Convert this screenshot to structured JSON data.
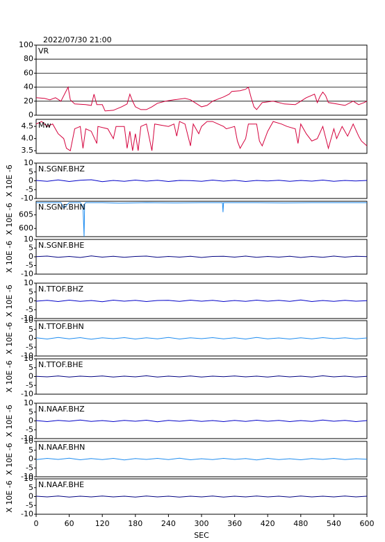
{
  "chart_data": [
    {
      "type": "line",
      "title": "2022/07/30 21:00",
      "xlim": [
        0,
        600
      ],
      "ylim": [
        0,
        100
      ],
      "yticks": [
        0,
        20,
        40,
        60,
        80,
        100
      ],
      "grid": true,
      "x": [
        0,
        15,
        25,
        35,
        45,
        58,
        62,
        70,
        90,
        100,
        105,
        110,
        120,
        125,
        140,
        155,
        165,
        170,
        175,
        180,
        190,
        200,
        210,
        220,
        235,
        250,
        270,
        280,
        300,
        310,
        320,
        340,
        350,
        355,
        370,
        380,
        385,
        390,
        395,
        400,
        410,
        430,
        450,
        470,
        480,
        490,
        505,
        510,
        515,
        520,
        525,
        530,
        545,
        560,
        575,
        585,
        595,
        600
      ],
      "series": [
        {
          "name": "VR",
          "color": "#d4003c",
          "values": [
            25,
            24,
            22,
            25,
            20,
            40,
            22,
            16,
            15,
            14,
            30,
            15,
            15,
            6,
            7,
            12,
            16,
            30,
            20,
            12,
            8,
            8,
            12,
            17,
            20,
            22,
            24,
            22,
            12,
            14,
            20,
            26,
            30,
            34,
            35,
            37,
            40,
            25,
            12,
            8,
            18,
            20,
            16,
            15,
            20,
            25,
            30,
            18,
            27,
            33,
            28,
            18,
            16,
            14,
            20,
            15,
            18,
            20
          ]
        }
      ]
    },
    {
      "type": "line",
      "xlim": [
        0,
        600
      ],
      "ylim": [
        3.39,
        4.79
      ],
      "yticks": [
        3.5,
        {
          "value": 4,
          "label": "4.0"
        },
        4.5
      ],
      "x": [
        0,
        10,
        20,
        30,
        40,
        50,
        55,
        62,
        70,
        80,
        85,
        90,
        100,
        110,
        112,
        130,
        140,
        145,
        160,
        165,
        170,
        175,
        180,
        185,
        190,
        200,
        210,
        215,
        240,
        250,
        255,
        260,
        270,
        280,
        285,
        295,
        300,
        310,
        320,
        330,
        340,
        345,
        360,
        365,
        370,
        380,
        385,
        400,
        405,
        410,
        420,
        430,
        445,
        455,
        470,
        475,
        480,
        490,
        500,
        510,
        520,
        530,
        540,
        545,
        555,
        565,
        575,
        585,
        590,
        600
      ],
      "series": [
        {
          "name": "Mw",
          "color": "#d4003c",
          "values": [
            4.6,
            4.7,
            4.5,
            4.6,
            4.2,
            4.0,
            3.6,
            3.5,
            4.4,
            4.5,
            3.6,
            4.4,
            4.3,
            3.8,
            4.5,
            4.4,
            4.0,
            4.5,
            4.5,
            3.6,
            4.3,
            3.5,
            4.2,
            3.5,
            4.5,
            4.6,
            3.5,
            4.6,
            4.5,
            4.6,
            4.1,
            4.7,
            4.6,
            3.7,
            4.6,
            4.2,
            4.5,
            4.7,
            4.7,
            4.6,
            4.5,
            4.4,
            4.5,
            3.9,
            3.6,
            4.0,
            4.6,
            4.6,
            3.9,
            3.7,
            4.3,
            4.7,
            4.6,
            4.5,
            4.4,
            3.8,
            4.6,
            4.2,
            3.9,
            4.0,
            4.5,
            3.6,
            4.4,
            4.0,
            4.5,
            4.1,
            4.6,
            4.1,
            3.9,
            3.7
          ]
        }
      ]
    },
    {
      "type": "line",
      "ylabel": "X 10E -6",
      "xlim": [
        0,
        600
      ],
      "ylim": [
        -10,
        10
      ],
      "yticks": [
        -10,
        -5,
        0,
        5,
        10
      ],
      "x": [
        0,
        20,
        40,
        60,
        80,
        100,
        120,
        140,
        160,
        180,
        200,
        220,
        240,
        260,
        280,
        300,
        320,
        340,
        360,
        380,
        400,
        420,
        440,
        460,
        480,
        500,
        520,
        540,
        560,
        580,
        600
      ],
      "series": [
        {
          "name": "N.SGNF.BHZ",
          "color": "#0000c8",
          "values": [
            0.2,
            -0.3,
            0.5,
            -0.4,
            0.3,
            0.6,
            -0.5,
            0.2,
            -0.3,
            0.4,
            -0.2,
            0.3,
            -0.4,
            0.2,
            0.1,
            -0.3,
            0.4,
            -0.2,
            0.3,
            -0.4,
            0.2,
            -0.1,
            0.3,
            -0.3,
            0.2,
            -0.2,
            0.4,
            -0.3,
            0.2,
            -0.1,
            0.2
          ]
        }
      ]
    },
    {
      "type": "line",
      "ylabel": "X 10E -6",
      "xlim": [
        0,
        600
      ],
      "ylim": [
        597,
        610
      ],
      "yticks": [
        600,
        605
      ],
      "x": [
        0,
        30,
        45,
        50,
        60,
        80,
        85,
        87,
        88,
        90,
        120,
        150,
        200,
        250,
        300,
        338,
        339,
        340,
        400,
        450,
        500,
        550,
        600
      ],
      "series": [
        {
          "name": "N.SGNF.BHN",
          "color": "#1e8cf0",
          "values": [
            609.5,
            609.5,
            609.5,
            607.5,
            609.5,
            609.5,
            608,
            597,
            609,
            609.5,
            609.5,
            609.3,
            609.5,
            609.4,
            609.5,
            609.5,
            606,
            609.5,
            609.5,
            609.4,
            609.5,
            609.5,
            609.5
          ]
        }
      ]
    },
    {
      "type": "line",
      "ylabel": "X 10E -6",
      "xlim": [
        0,
        600
      ],
      "ylim": [
        -10,
        10
      ],
      "yticks": [
        -10,
        -5,
        0,
        5,
        10
      ],
      "x": [
        0,
        20,
        40,
        60,
        80,
        100,
        120,
        140,
        160,
        180,
        200,
        220,
        240,
        260,
        280,
        300,
        320,
        340,
        360,
        380,
        400,
        420,
        440,
        460,
        480,
        500,
        520,
        540,
        560,
        580,
        600
      ],
      "series": [
        {
          "name": "N.SGNF.BHE",
          "color": "#000080",
          "values": [
            0.1,
            0.4,
            -0.3,
            0.2,
            -0.4,
            0.5,
            -0.2,
            0.3,
            -0.3,
            0.2,
            0.4,
            -0.3,
            0.2,
            -0.2,
            0.3,
            -0.4,
            0.2,
            0.3,
            -0.2,
            0.4,
            -0.3,
            0.2,
            -0.2,
            0.3,
            -0.4,
            0.2,
            -0.3,
            0.4,
            -0.2,
            0.3,
            0.1
          ]
        }
      ]
    },
    {
      "type": "line",
      "ylabel": "X 10E -6",
      "xlim": [
        0,
        600
      ],
      "ylim": [
        -10,
        10
      ],
      "yticks": [
        -10,
        -5,
        0,
        5,
        10
      ],
      "x": [
        0,
        20,
        40,
        60,
        80,
        100,
        120,
        140,
        160,
        180,
        200,
        220,
        240,
        260,
        280,
        300,
        320,
        340,
        360,
        380,
        400,
        420,
        440,
        460,
        480,
        500,
        520,
        540,
        560,
        580,
        600
      ],
      "series": [
        {
          "name": "N.TTOF.BHZ",
          "color": "#0000c8",
          "values": [
            -0.2,
            0.3,
            -0.4,
            0.4,
            -0.3,
            0.2,
            -0.5,
            0.4,
            -0.2,
            0.3,
            -0.4,
            0.2,
            0.3,
            -0.3,
            0.4,
            -0.2,
            0.3,
            -0.4,
            0.2,
            -0.3,
            0.4,
            -0.2,
            0.3,
            -0.3,
            0.5,
            -0.4,
            0.2,
            -0.3,
            0.3,
            -0.2,
            0.1
          ]
        }
      ]
    },
    {
      "type": "line",
      "ylabel": "X 10E -6",
      "xlim": [
        0,
        600
      ],
      "ylim": [
        -10,
        10
      ],
      "yticks": [
        -10,
        -5,
        0,
        5,
        10
      ],
      "x": [
        0,
        20,
        40,
        60,
        80,
        100,
        120,
        140,
        160,
        180,
        200,
        220,
        240,
        260,
        280,
        300,
        320,
        340,
        360,
        380,
        400,
        420,
        440,
        460,
        480,
        500,
        520,
        540,
        560,
        580,
        600
      ],
      "series": [
        {
          "name": "N.TTOF.BHN",
          "color": "#1e8cf0",
          "values": [
            0.3,
            -0.4,
            0.5,
            -0.3,
            0.4,
            -0.5,
            0.3,
            -0.2,
            0.4,
            -0.4,
            0.3,
            -0.3,
            0.5,
            -0.4,
            0.3,
            -0.2,
            0.4,
            -0.3,
            0.3,
            -0.4,
            0.5,
            -0.3,
            0.2,
            -0.4,
            0.3,
            -0.3,
            0.4,
            -0.2,
            0.3,
            -0.3,
            0.2
          ]
        }
      ]
    },
    {
      "type": "line",
      "ylabel": "X 10E -6",
      "xlim": [
        0,
        600
      ],
      "ylim": [
        -10,
        10
      ],
      "yticks": [
        -10,
        -5,
        0,
        5,
        10
      ],
      "x": [
        0,
        20,
        40,
        60,
        80,
        100,
        120,
        140,
        160,
        180,
        200,
        220,
        240,
        260,
        280,
        300,
        320,
        340,
        360,
        380,
        400,
        420,
        440,
        460,
        480,
        500,
        520,
        540,
        560,
        580,
        600
      ],
      "series": [
        {
          "name": "N.TTOF.BHE",
          "color": "#000080",
          "values": [
            0.1,
            -0.2,
            0.3,
            -0.3,
            0.2,
            -0.1,
            0.3,
            -0.3,
            0.2,
            -0.2,
            0.4,
            -0.3,
            0.2,
            -0.2,
            0.3,
            -0.3,
            0.2,
            -0.1,
            0.3,
            -0.2,
            0.2,
            -0.3,
            0.3,
            -0.2,
            0.2,
            -0.3,
            0.4,
            -0.2,
            0.2,
            -0.3,
            0.1
          ]
        }
      ]
    },
    {
      "type": "line",
      "ylabel": "X 10E -6",
      "xlim": [
        0,
        600
      ],
      "ylim": [
        -10,
        10
      ],
      "yticks": [
        -10,
        -5,
        0,
        5,
        10
      ],
      "x": [
        0,
        20,
        40,
        60,
        80,
        100,
        120,
        140,
        160,
        180,
        200,
        220,
        240,
        260,
        280,
        300,
        320,
        340,
        360,
        380,
        400,
        420,
        440,
        460,
        480,
        500,
        520,
        540,
        560,
        580,
        600
      ],
      "series": [
        {
          "name": "N.NAAF.BHZ",
          "color": "#0000c8",
          "values": [
            0.2,
            -0.4,
            0.3,
            -0.2,
            0.5,
            -0.3,
            0.2,
            -0.4,
            0.3,
            -0.2,
            0.4,
            -0.5,
            0.3,
            -0.2,
            0.4,
            -0.3,
            0.2,
            -0.4,
            0.3,
            -0.3,
            0.4,
            -0.2,
            0.3,
            -0.4,
            0.2,
            -0.3,
            0.5,
            -0.2,
            0.3,
            -0.4,
            0.2
          ]
        }
      ]
    },
    {
      "type": "line",
      "ylabel": "X 10E -6",
      "xlim": [
        0,
        600
      ],
      "ylim": [
        -10,
        10
      ],
      "yticks": [
        -10,
        -5,
        0,
        5,
        10
      ],
      "x": [
        0,
        20,
        40,
        60,
        80,
        100,
        120,
        140,
        160,
        180,
        200,
        220,
        240,
        260,
        280,
        300,
        320,
        340,
        360,
        380,
        400,
        420,
        440,
        460,
        480,
        500,
        520,
        540,
        560,
        580,
        600
      ],
      "series": [
        {
          "name": "N.NAAF.BHN",
          "color": "#1e8cf0",
          "values": [
            -0.3,
            0.4,
            -0.2,
            0.5,
            -0.4,
            0.3,
            -0.3,
            0.4,
            -0.5,
            0.3,
            -0.2,
            0.4,
            -0.3,
            0.5,
            -0.4,
            0.2,
            -0.3,
            0.4,
            -0.2,
            0.3,
            -0.5,
            0.4,
            -0.3,
            0.2,
            -0.4,
            0.3,
            -0.2,
            0.4,
            -0.3,
            0.2,
            -0.1
          ]
        }
      ]
    },
    {
      "type": "line",
      "ylabel": "X 10E -6",
      "xlabel": "SEC",
      "xlim": [
        0,
        600
      ],
      "ylim": [
        -10,
        10
      ],
      "yticks": [
        -10,
        -5,
        0,
        5,
        10
      ],
      "xticks": [
        0,
        60,
        120,
        180,
        240,
        300,
        360,
        420,
        480,
        540,
        600
      ],
      "x": [
        0,
        20,
        40,
        60,
        80,
        100,
        120,
        140,
        160,
        180,
        200,
        220,
        240,
        260,
        280,
        300,
        320,
        340,
        360,
        380,
        400,
        420,
        440,
        460,
        480,
        500,
        520,
        540,
        560,
        580,
        600
      ],
      "series": [
        {
          "name": "N.NAAF.BHE",
          "color": "#000080",
          "values": [
            0.2,
            -0.2,
            0.3,
            -0.3,
            0.2,
            -0.2,
            0.3,
            -0.2,
            0.2,
            -0.3,
            0.3,
            -0.2,
            0.2,
            -0.3,
            0.2,
            -0.2,
            0.3,
            -0.3,
            0.2,
            -0.2,
            0.3,
            -0.2,
            0.2,
            -0.3,
            0.3,
            -0.2,
            0.2,
            -0.2,
            0.3,
            -0.2,
            0.2
          ]
        }
      ]
    }
  ]
}
